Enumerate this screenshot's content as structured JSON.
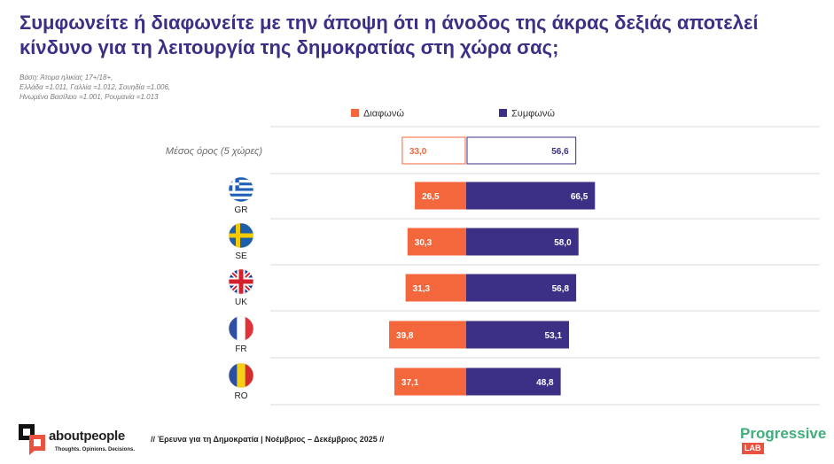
{
  "title": "Συμφωνείτε ή διαφωνείτε με την άποψη ότι η άνοδος της άκρας δεξιάς αποτελεί κίνδυνο για τη λειτουργία της δημοκρατίας στη χώρα σας;",
  "basis": [
    "Βάση: Άτομα ηλικίας 17+/18+,",
    "Ελλάδα =1.011, Γαλλία =1.012, Σουηδία =1.006,",
    "Ηνωμένο Βασίλειο =1.001, Ρουμανία =1.013"
  ],
  "colors": {
    "disagree": "#f4663b",
    "agree": "#3b2f86",
    "title": "#3b2f86"
  },
  "chart_data": {
    "type": "bar",
    "orientation": "horizontal-diverging",
    "categories": [
      "Μέσος όρος (5 χώρες)",
      "GR",
      "SE",
      "UK",
      "FR",
      "RO"
    ],
    "category_icons": [
      "",
      "flag-greece",
      "flag-sweden",
      "flag-uk",
      "flag-france",
      "flag-romania"
    ],
    "series": [
      {
        "name": "Διαφωνώ",
        "values": [
          33.0,
          26.5,
          30.3,
          31.3,
          39.8,
          37.1
        ],
        "labels": [
          "33,0",
          "26,5",
          "30,3",
          "31,3",
          "39,8",
          "37,1"
        ]
      },
      {
        "name": "Συμφωνώ",
        "values": [
          56.6,
          66.5,
          58.0,
          56.8,
          53.1,
          48.8
        ],
        "labels": [
          "56,6",
          "66,5",
          "58,0",
          "56,8",
          "53,1",
          "48,8"
        ]
      }
    ],
    "legend": "top",
    "first_row_style": "outlined"
  },
  "footer": {
    "survey": "// Έρευνα για τη Δημοκρατία | Νοέμβριος – Δεκέμβριος 2025 //",
    "logo_left_word": "aboutpeople",
    "logo_left_tagline": "Thoughts. Opinions. Decisions.",
    "logo_right_word": "Progressive",
    "logo_right_badge": "LAB"
  }
}
